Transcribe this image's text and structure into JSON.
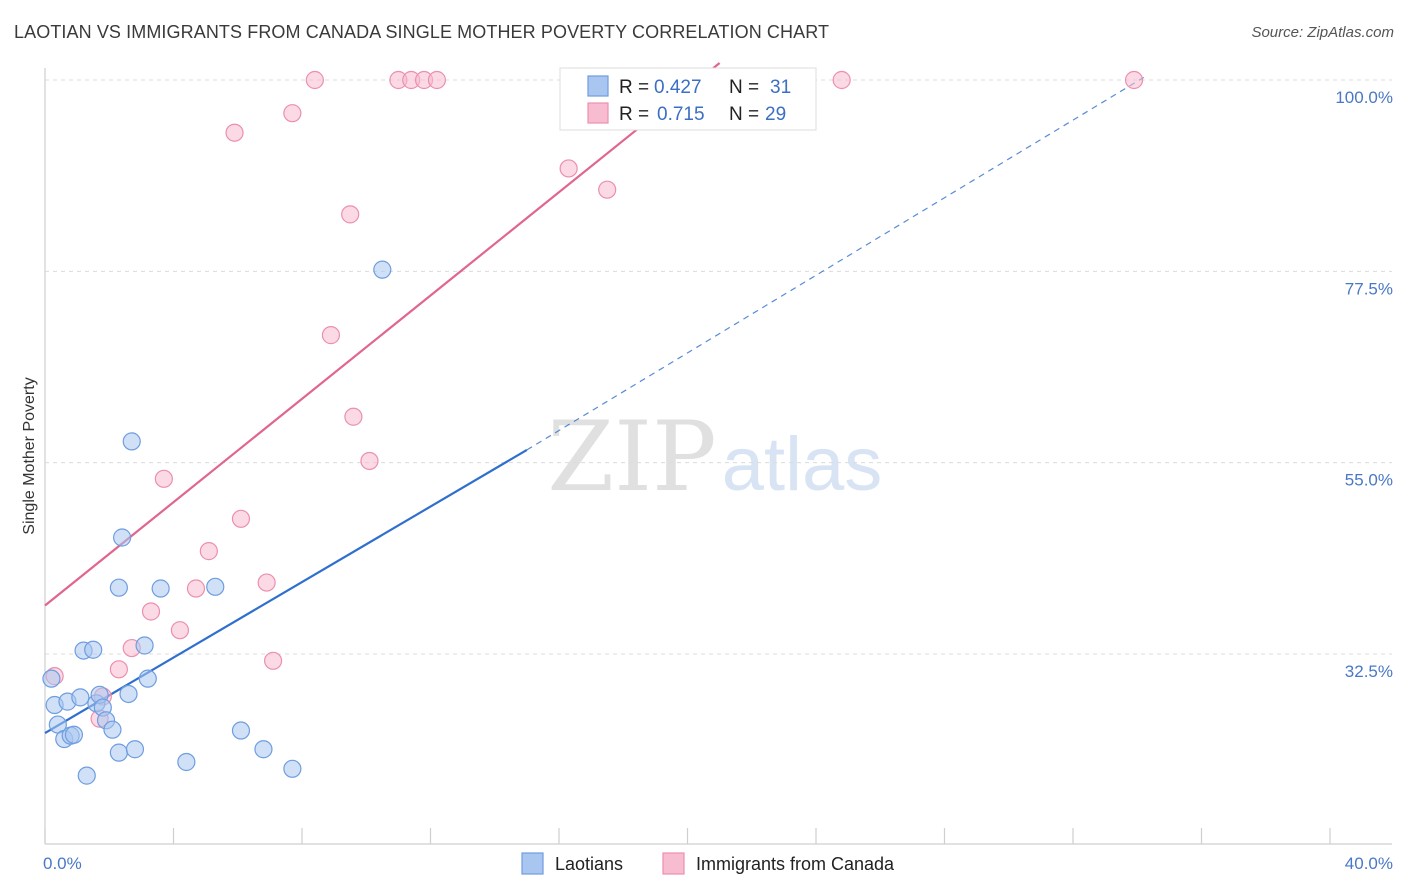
{
  "title": "LAOTIAN VS IMMIGRANTS FROM CANADA SINGLE MOTHER POVERTY CORRELATION CHART",
  "source": "Source: ZipAtlas.com",
  "watermark": {
    "zip": "ZIP",
    "atlas": "atlas"
  },
  "legend": {
    "r_label": "R =",
    "n_label": "N =",
    "entries": [
      {
        "r": "0.427",
        "n": "31",
        "color": "#a9c6f0",
        "stroke": "#6e9de0"
      },
      {
        "r": "0.715",
        "n": "29",
        "color": "#f8bcd0",
        "stroke": "#ec8fae"
      }
    ]
  },
  "bottom_legend": [
    "Laotians",
    "Immigrants from Canada"
  ],
  "chart_data": {
    "type": "scatter",
    "title": "LAOTIAN VS IMMIGRANTS FROM CANADA SINGLE MOTHER POVERTY CORRELATION CHART",
    "xlabel": "",
    "ylabel": "Single Mother Poverty",
    "x_tick_labels": [
      "0.0%",
      "40.0%"
    ],
    "y_tick_labels": [
      "100.0%",
      "77.5%",
      "55.0%",
      "32.5%"
    ],
    "y_ticks": [
      100.0,
      77.5,
      55.0,
      32.5
    ],
    "xlim": [
      0,
      40
    ],
    "ylim": [
      10,
      102
    ],
    "grid": "horizontal-dashed",
    "legend_position": "top-center",
    "series": [
      {
        "name": "Laotians",
        "color": "#a9c6f0",
        "stroke": "#6e9de0",
        "line_color": "#2f6fce",
        "trend": {
          "x0": 0,
          "y0": 23.2,
          "x1": 15,
          "y1": 56.5,
          "x_dash_end": 34.2,
          "y_dash_end": 100.3
        },
        "points": [
          [
            0.2,
            29.6
          ],
          [
            0.3,
            26.5
          ],
          [
            0.4,
            24.2
          ],
          [
            0.6,
            22.5
          ],
          [
            0.7,
            26.9
          ],
          [
            0.8,
            22.9
          ],
          [
            0.9,
            23.0
          ],
          [
            1.1,
            27.4
          ],
          [
            1.2,
            32.9
          ],
          [
            1.3,
            18.2
          ],
          [
            1.5,
            33.0
          ],
          [
            1.6,
            26.7
          ],
          [
            1.7,
            27.7
          ],
          [
            1.8,
            26.2
          ],
          [
            1.9,
            24.7
          ],
          [
            2.1,
            23.6
          ],
          [
            2.3,
            20.9
          ],
          [
            2.3,
            40.3
          ],
          [
            2.4,
            46.2
          ],
          [
            2.6,
            27.8
          ],
          [
            2.7,
            57.5
          ],
          [
            2.8,
            21.3
          ],
          [
            3.1,
            33.5
          ],
          [
            3.2,
            29.6
          ],
          [
            3.6,
            40.2
          ],
          [
            4.4,
            19.8
          ],
          [
            5.3,
            40.4
          ],
          [
            6.1,
            23.5
          ],
          [
            6.8,
            21.3
          ],
          [
            7.7,
            19.0
          ],
          [
            10.5,
            77.7
          ]
        ]
      },
      {
        "name": "Immigrants from Canada",
        "color": "#f8bcd0",
        "stroke": "#ec8fae",
        "line_color": "#e0668f",
        "trend": {
          "x0": 0,
          "y0": 38.2,
          "x1": 21,
          "y1": 102.0
        },
        "points": [
          [
            0.3,
            29.9
          ],
          [
            1.7,
            24.9
          ],
          [
            1.8,
            27.5
          ],
          [
            2.3,
            30.7
          ],
          [
            2.7,
            33.2
          ],
          [
            3.3,
            37.5
          ],
          [
            3.7,
            53.1
          ],
          [
            4.2,
            35.3
          ],
          [
            4.7,
            40.2
          ],
          [
            5.1,
            44.6
          ],
          [
            5.9,
            93.8
          ],
          [
            6.1,
            48.4
          ],
          [
            6.9,
            40.9
          ],
          [
            7.1,
            31.7
          ],
          [
            7.7,
            96.1
          ],
          [
            8.4,
            100.0
          ],
          [
            8.9,
            70.0
          ],
          [
            9.5,
            84.2
          ],
          [
            9.6,
            60.4
          ],
          [
            10.1,
            55.2
          ],
          [
            11.0,
            100.0
          ],
          [
            11.4,
            100.0
          ],
          [
            11.8,
            100.0
          ],
          [
            12.2,
            100.0
          ],
          [
            16.3,
            89.6
          ],
          [
            17.5,
            87.1
          ],
          [
            20.5,
            100.0
          ],
          [
            24.8,
            100.0
          ],
          [
            33.9,
            100.0
          ]
        ]
      }
    ]
  }
}
